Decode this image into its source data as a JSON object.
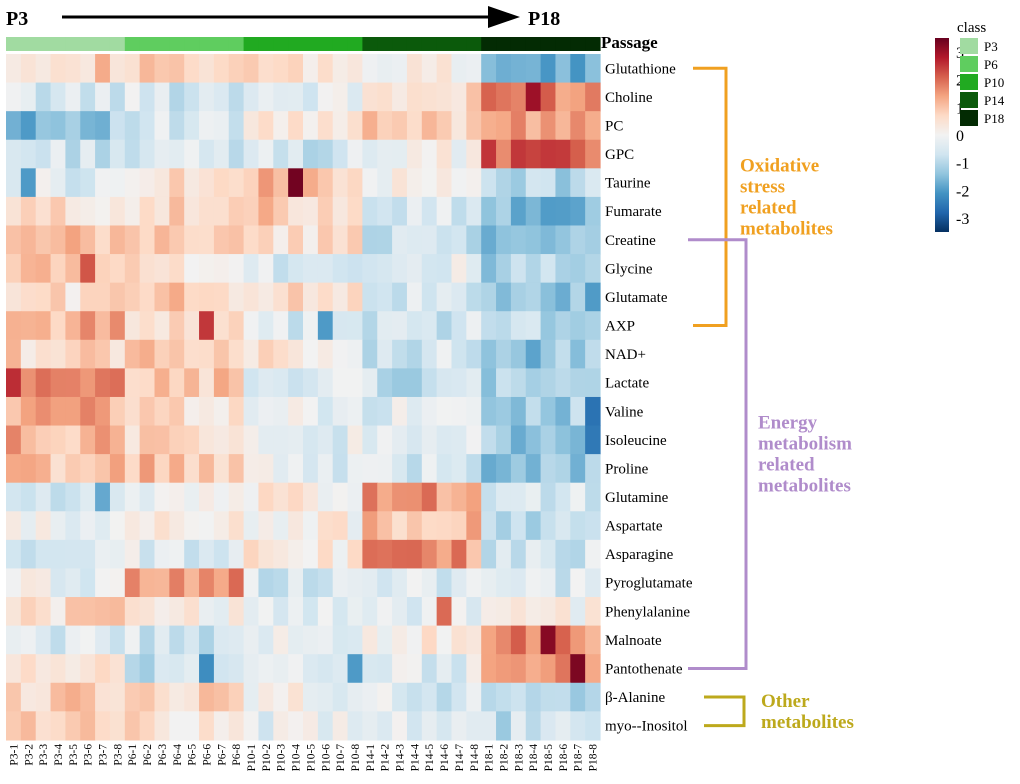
{
  "chart_data": {
    "type": "heatmap",
    "title": "",
    "direction_arrow": {
      "start_label": "P3",
      "end_label": "P18"
    },
    "passage_bar_label": "Passage",
    "samples": [
      "P3-1",
      "P3-2",
      "P3-3",
      "P3-4",
      "P3-5",
      "P3-6",
      "P3-7",
      "P3-8",
      "P6-1",
      "P6-2",
      "P6-3",
      "P6-4",
      "P6-5",
      "P6-6",
      "P6-7",
      "P6-8",
      "P10-1",
      "P10-2",
      "P10-3",
      "P10-4",
      "P10-5",
      "P10-6",
      "P10-7",
      "P10-8",
      "P14-1",
      "P14-2",
      "P14-3",
      "P14-4",
      "P14-5",
      "P14-6",
      "P14-7",
      "P14-8",
      "P18-1",
      "P18-2",
      "P18-3",
      "P18-4",
      "P18-5",
      "P18-6",
      "P18-7",
      "P18-8"
    ],
    "metabolites": [
      "Glutathione",
      "Choline",
      "PC",
      "GPC",
      "Taurine",
      "Fumarate",
      "Creatine",
      "Glycine",
      "Glutamate",
      "AXP",
      "NAD+",
      "Lactate",
      "Valine",
      "Isoleucine",
      "Proline",
      "Glutamine",
      "Aspartate",
      "Asparagine",
      "Pyroglutamate",
      "Phenylalanine",
      "Malnoate",
      "Pantothenate",
      "β-Alanine",
      "myo--Inositol"
    ],
    "group_profiles": [
      [
        0.8,
        0.7,
        0.4,
        0.0,
        -1.8
      ],
      [
        -0.5,
        -0.5,
        -0.3,
        0.5,
        1.8
      ],
      [
        -1.2,
        -0.6,
        0.3,
        0.8,
        1.6
      ],
      [
        -0.6,
        -0.6,
        -0.6,
        0.0,
        2.0
      ],
      [
        -0.4,
        0.6,
        1.0,
        0.0,
        -1.0
      ],
      [
        0.5,
        0.6,
        0.8,
        -0.4,
        -1.6
      ],
      [
        0.9,
        0.9,
        0.5,
        -0.6,
        -1.6
      ],
      [
        1.2,
        0.5,
        -0.4,
        -0.3,
        -1.2
      ],
      [
        0.6,
        0.8,
        0.6,
        -0.5,
        -1.5
      ],
      [
        1.2,
        0.8,
        -0.5,
        -0.6,
        -0.9
      ],
      [
        0.7,
        1.0,
        0.4,
        -0.6,
        -1.4
      ],
      [
        1.5,
        0.9,
        -0.4,
        -0.8,
        -1.0
      ],
      [
        1.3,
        0.6,
        -0.2,
        -0.4,
        -1.2
      ],
      [
        1.2,
        0.7,
        -0.3,
        -0.4,
        -1.3
      ],
      [
        1.0,
        1.0,
        -0.3,
        -0.5,
        -1.3
      ],
      [
        -0.6,
        -0.3,
        0.2,
        1.5,
        -0.5
      ],
      [
        -0.2,
        0.3,
        0.2,
        1.0,
        -1.0
      ],
      [
        -0.6,
        -0.4,
        0.4,
        1.5,
        -0.6
      ],
      [
        -0.2,
        1.5,
        -0.5,
        -0.5,
        -0.5
      ],
      [
        0.6,
        0.2,
        -0.3,
        -0.2,
        0.0
      ],
      [
        -0.5,
        -0.6,
        -0.3,
        0.2,
        1.7
      ],
      [
        0.3,
        -0.7,
        -0.5,
        -0.3,
        1.5
      ],
      [
        0.8,
        0.8,
        0.0,
        -0.5,
        -0.8
      ],
      [
        1.0,
        0.5,
        -0.3,
        -0.5,
        -0.8
      ]
    ],
    "highlights": [
      {
        "metabolite": 4,
        "sample": 19,
        "value": 3.4
      },
      {
        "metabolite": 1,
        "sample": 35,
        "value": 3.0
      },
      {
        "metabolite": 20,
        "sample": 36,
        "value": 3.2
      },
      {
        "metabolite": 21,
        "sample": 38,
        "value": 3.3
      },
      {
        "metabolite": 11,
        "sample": 0,
        "value": 2.6
      },
      {
        "metabolite": 9,
        "sample": 13,
        "value": 2.5
      },
      {
        "metabolite": 7,
        "sample": 5,
        "value": 2.2
      },
      {
        "metabolite": 3,
        "sample": 34,
        "value": 2.5
      },
      {
        "metabolite": 2,
        "sample": 1,
        "value": -2.0
      },
      {
        "metabolite": 4,
        "sample": 1,
        "value": -2.0
      },
      {
        "metabolite": 9,
        "sample": 21,
        "value": -2.0
      },
      {
        "metabolite": 21,
        "sample": 23,
        "value": -2.0
      },
      {
        "metabolite": 21,
        "sample": 13,
        "value": -2.2
      },
      {
        "metabolite": 15,
        "sample": 6,
        "value": -1.8
      },
      {
        "metabolite": 12,
        "sample": 39,
        "value": -2.6
      },
      {
        "metabolite": 13,
        "sample": 39,
        "value": -2.5
      },
      {
        "metabolite": 19,
        "sample": 29,
        "value": 2.0
      },
      {
        "metabolite": 15,
        "sample": 28,
        "value": 2.0
      }
    ],
    "color_scale": {
      "range": [
        -3.5,
        3.5
      ],
      "ticks": [
        3,
        2,
        1,
        0,
        -1,
        -2,
        -3
      ],
      "tick_labels": [
        "3",
        "2",
        "1",
        "0",
        "-1",
        "-2",
        "-3"
      ],
      "stops": [
        "#053061",
        "#2166ac",
        "#4393c3",
        "#92c5de",
        "#d1e5f0",
        "#f2f2f2",
        "#fddbc7",
        "#f4a582",
        "#d6604d",
        "#b2182b",
        "#67001f"
      ]
    },
    "legend": {
      "title": "class",
      "entries": [
        {
          "label": "P3",
          "color": "#a1dba1"
        },
        {
          "label": "P6",
          "color": "#5fcd5f"
        },
        {
          "label": "P10",
          "color": "#21aa21"
        },
        {
          "label": "P14",
          "color": "#0b5a0b"
        },
        {
          "label": "P18",
          "color": "#032b03"
        }
      ]
    },
    "groups": [
      {
        "label": "Oxidative stress related metabolites",
        "lines": [
          "Oxidative",
          "stress",
          "related",
          "metabolites"
        ],
        "from": "Glutathione",
        "to": "AXP",
        "color": "#f0a020"
      },
      {
        "label": "Energy metabolism related metabolites",
        "lines": [
          "Energy",
          "metabolism",
          "related",
          "metabolites"
        ],
        "from": "Creatine",
        "to": "Pantothenate",
        "color": "#b08ccb"
      },
      {
        "label": "Other metabolites",
        "lines": [
          "Other",
          "metabolites"
        ],
        "from": "β-Alanine",
        "to": "myo--Inositol",
        "color": "#bda91c"
      }
    ]
  }
}
